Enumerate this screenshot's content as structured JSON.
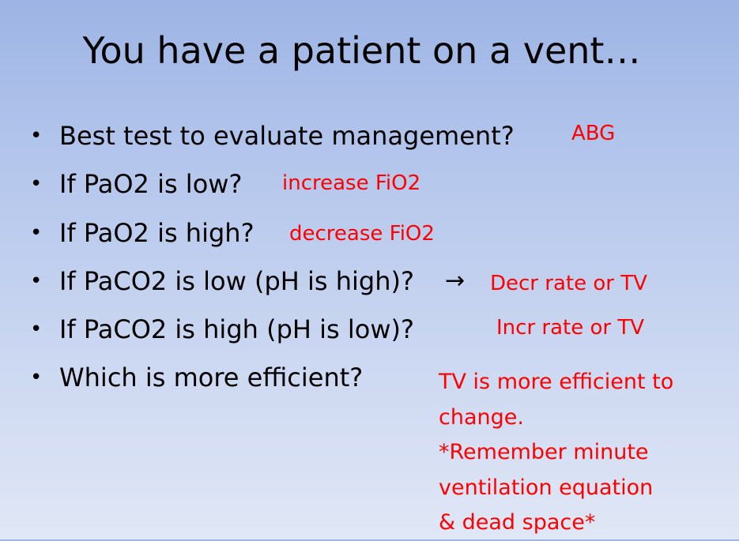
{
  "slide": {
    "title": "You have a patient on a vent…",
    "bullet_symbol": "•",
    "arrow_glyph": "→",
    "items": [
      {
        "question": "Best test to evaluate management?",
        "answer": "ABG"
      },
      {
        "question": "If PaO2 is low?",
        "answer": "increase FiO2"
      },
      {
        "question": "If PaO2 is high?",
        "answer": "decrease FiO2"
      },
      {
        "question": "If PaCO2 is low (pH is high)?",
        "answer": "Decr rate or TV"
      },
      {
        "question": "If PaCO2 is high (pH is low)?",
        "answer": "Incr rate or TV"
      },
      {
        "question": "Which is more efficient?",
        "answer_lines": [
          "TV is more efficient to",
          "change.",
          "*Remember minute",
          "ventilation equation",
          "& dead space*"
        ]
      }
    ],
    "answer_color": "#ff0000"
  }
}
